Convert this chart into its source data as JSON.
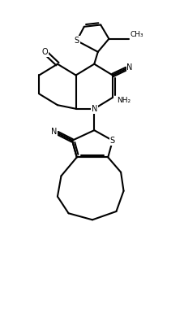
{
  "bg_color": "#ffffff",
  "line_color": "#000000",
  "line_width": 1.5,
  "fig_width": 2.28,
  "fig_height": 3.8,
  "dpi": 100,
  "xlim": [
    0,
    10
  ],
  "ylim": [
    0,
    16.5
  ]
}
